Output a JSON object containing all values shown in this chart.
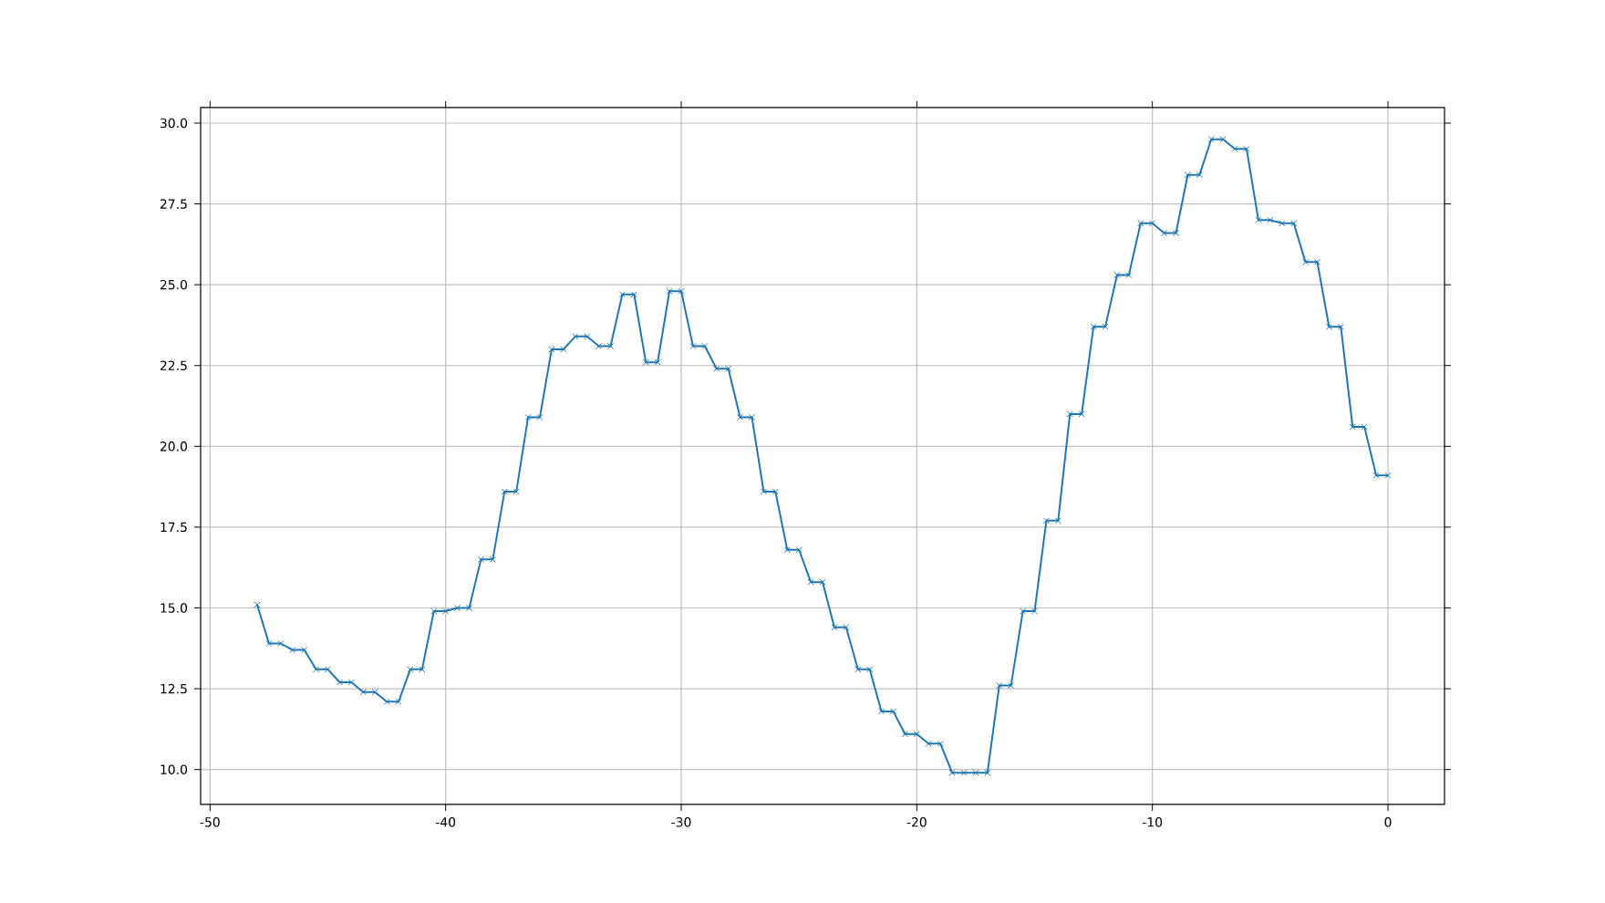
{
  "chart_data": {
    "type": "line",
    "x": [
      -48,
      -47.5,
      -47,
      -46.5,
      -46,
      -45.5,
      -45,
      -44.5,
      -44,
      -43.5,
      -43,
      -42.5,
      -42,
      -41.5,
      -41,
      -40.5,
      -40,
      -39.5,
      -39,
      -38.5,
      -38,
      -37.5,
      -37,
      -36.5,
      -36,
      -35.5,
      -35,
      -34.5,
      -34,
      -33.5,
      -33,
      -32.5,
      -32,
      -31.5,
      -31,
      -30.5,
      -30,
      -29.5,
      -29,
      -28.5,
      -28,
      -27.5,
      -27,
      -26.5,
      -26,
      -25.5,
      -25,
      -24.5,
      -24,
      -23.5,
      -23,
      -22.5,
      -22,
      -21.5,
      -21,
      -20.5,
      -20,
      -19.5,
      -19,
      -18.5,
      -18,
      -17.5,
      -17,
      -16.5,
      -16,
      -15.5,
      -15,
      -14.5,
      -14,
      -13.5,
      -13,
      -12.5,
      -12,
      -11.5,
      -11,
      -10.5,
      -10,
      -9.5,
      -9,
      -8.5,
      -8,
      -7.5,
      -7,
      -6.5,
      -6,
      -5.5,
      -5,
      -4.5,
      -4,
      -3.5,
      -3,
      -2.5,
      -2,
      -1.5,
      -1,
      -0.5,
      0
    ],
    "series": [
      {
        "color": "#1f77b4",
        "values": [
          15.1,
          13.9,
          13.9,
          13.7,
          13.7,
          13.1,
          13.1,
          12.7,
          12.7,
          12.4,
          12.4,
          12.1,
          12.1,
          13.1,
          13.1,
          14.9,
          14.9,
          15.0,
          15.0,
          16.5,
          16.5,
          18.6,
          18.6,
          20.9,
          20.9,
          23.0,
          23.0,
          23.4,
          23.4,
          23.1,
          23.1,
          24.7,
          24.7,
          22.6,
          22.6,
          24.8,
          24.8,
          23.1,
          23.1,
          22.4,
          22.4,
          20.9,
          20.9,
          18.6,
          18.6,
          16.8,
          16.8,
          15.8,
          15.8,
          14.4,
          14.4,
          13.1,
          13.1,
          11.8,
          11.8,
          11.1,
          11.1,
          10.8,
          10.8,
          9.9,
          9.9,
          9.9,
          9.9,
          12.6,
          12.6,
          14.9,
          14.9,
          17.7,
          17.7,
          21.0,
          21.0,
          23.7,
          23.7,
          25.3,
          25.3,
          26.9,
          26.9,
          26.6,
          26.6,
          28.4,
          28.4,
          29.5,
          29.5,
          29.2,
          29.2,
          27.0,
          27.0,
          26.9,
          26.9,
          25.7,
          25.7,
          23.7,
          23.7,
          20.6,
          20.6,
          19.1,
          19.1
        ]
      }
    ],
    "xlim": [
      -50.4,
      2.4
    ],
    "ylim": [
      8.92,
      30.48
    ],
    "xticks": [
      -50,
      -40,
      -30,
      -20,
      -10,
      0
    ],
    "yticks": [
      {
        "value": 10,
        "label": "10.0"
      },
      {
        "value": 12.5,
        "label": "12.5"
      },
      {
        "value": 15,
        "label": "15.0"
      },
      {
        "value": 17.5,
        "label": "17.5"
      },
      {
        "value": 20,
        "label": "20.0"
      },
      {
        "value": 22.5,
        "label": "22.5"
      },
      {
        "value": 25,
        "label": "25.0"
      },
      {
        "value": 27.5,
        "label": "27.5"
      },
      {
        "value": 30,
        "label": "30.0"
      }
    ],
    "grid": true,
    "marker": "cross",
    "line_style": "solid"
  }
}
